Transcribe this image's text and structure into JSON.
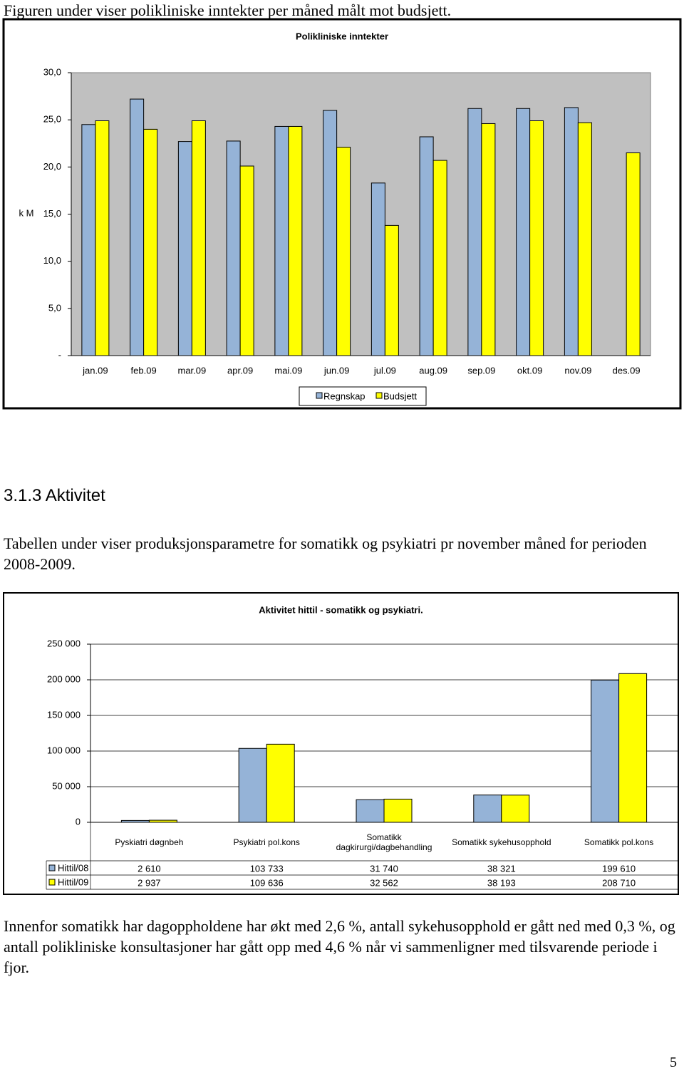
{
  "intro": "Figuren under viser polikliniske inntekter per måned målt mot budsjett.",
  "heading": "3.1.3 Aktivitet",
  "paragraph1": "Tabellen under viser produksjonsparametre for somatikk og psykiatri pr november måned for perioden 2008-2009.",
  "paragraph2": "Innenfor somatikk har dagoppholdene har økt med 2,6 %, antall sykehusopphold er gått ned med 0,3 %, og antall polikliniske konsultasjoner har gått opp med 4,6 % når vi sammenligner med tilsvarende periode i fjor.",
  "page_number": "5",
  "chart_data": [
    {
      "type": "bar",
      "title": "Polikliniske inntekter",
      "y_label": "k M",
      "categories": [
        "jan.09",
        "feb.09",
        "mar.09",
        "apr.09",
        "mai.09",
        "jun.09",
        "jul.09",
        "aug.09",
        "sep.09",
        "okt.09",
        "nov.09",
        "des.09"
      ],
      "series": [
        {
          "name": "Regnskap",
          "color": "#95b3d7",
          "values": [
            24.5,
            27.2,
            22.7,
            22.75,
            24.3,
            26.0,
            18.3,
            23.2,
            26.2,
            26.2,
            26.3,
            null
          ]
        },
        {
          "name": "Budsjett",
          "color": "#ffff00",
          "values": [
            24.9,
            24.0,
            24.9,
            20.1,
            24.3,
            22.1,
            13.8,
            20.7,
            24.6,
            24.9,
            24.7,
            21.5
          ]
        }
      ],
      "ylim": [
        0,
        30
      ],
      "yticks": [
        {
          "value": 0,
          "label": "-"
        },
        {
          "value": 5,
          "label": "5,0"
        },
        {
          "value": 10,
          "label": "10,0"
        },
        {
          "value": 15,
          "label": "15,0"
        },
        {
          "value": 20,
          "label": "20,0"
        },
        {
          "value": 25,
          "label": "25,0"
        },
        {
          "value": 30,
          "label": "30,0"
        }
      ],
      "plot_background": "#c0c0c0",
      "legend": "bottom"
    },
    {
      "type": "bar",
      "title": "Aktivitet hittil - somatikk og psykiatri.",
      "categories": [
        "Pyskiatri døgnbeh",
        "Psykiatri pol.kons",
        "Somatikk dagkirurgi/dagbehandling",
        "Somatikk sykehusopphold",
        "Somatikk pol.kons"
      ],
      "series": [
        {
          "name": "Hittil/08",
          "color": "#95b3d7",
          "values": [
            2610,
            103733,
            31740,
            38321,
            199610
          ],
          "value_labels": [
            "2 610",
            "103 733",
            "31 740",
            "38 321",
            "199 610"
          ]
        },
        {
          "name": "Hittil/09",
          "color": "#ffff00",
          "values": [
            2937,
            109636,
            32562,
            38193,
            208710
          ],
          "value_labels": [
            "2 937",
            "109 636",
            "32 562",
            "38 193",
            "208 710"
          ]
        }
      ],
      "ylim": [
        0,
        250000
      ],
      "yticks": [
        0,
        {
          "value": 50000,
          "label": "50 000"
        },
        {
          "value": 100000,
          "label": "100 000"
        },
        {
          "value": 150000,
          "label": "150 000"
        },
        {
          "value": 200000,
          "label": "200 000"
        },
        {
          "value": 250000,
          "label": "250 000"
        }
      ],
      "grid": true,
      "data_table": true
    }
  ]
}
